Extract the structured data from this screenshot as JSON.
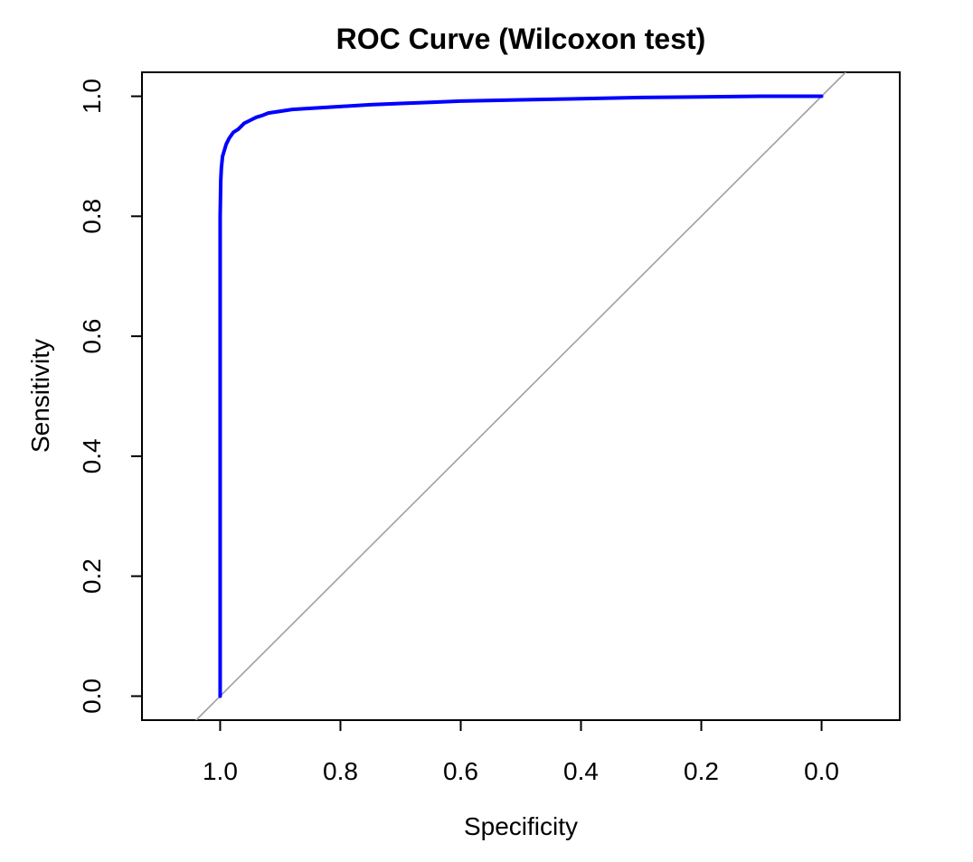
{
  "chart_data": {
    "type": "line",
    "title": "ROC Curve (Wilcoxon test)",
    "xlabel": "Specificity",
    "ylabel": "Sensitivity",
    "x_reversed": true,
    "xlim": [
      1.13,
      -0.13
    ],
    "ylim": [
      -0.04,
      1.04
    ],
    "x_ticks": [
      1.0,
      0.8,
      0.6,
      0.4,
      0.2,
      0.0
    ],
    "x_tick_labels": [
      "1.0",
      "0.8",
      "0.6",
      "0.4",
      "0.2",
      "0.0"
    ],
    "y_ticks": [
      0.0,
      0.2,
      0.4,
      0.6,
      0.8,
      1.0
    ],
    "y_tick_labels": [
      "0.0",
      "0.2",
      "0.4",
      "0.6",
      "0.8",
      "1.0"
    ],
    "grid": false,
    "series": [
      {
        "role": "roc-curve",
        "color": "#0000ff",
        "x": [
          1.0,
          1.0,
          0.999,
          0.998,
          0.996,
          0.993,
          0.99,
          0.985,
          0.978,
          0.97,
          0.96,
          0.95,
          0.94,
          0.93,
          0.92,
          0.9,
          0.88,
          0.85,
          0.8,
          0.75,
          0.7,
          0.65,
          0.6,
          0.5,
          0.4,
          0.3,
          0.2,
          0.1,
          0.0
        ],
        "y": [
          0.0,
          0.8,
          0.86,
          0.88,
          0.9,
          0.91,
          0.92,
          0.93,
          0.94,
          0.945,
          0.955,
          0.96,
          0.965,
          0.968,
          0.972,
          0.975,
          0.978,
          0.98,
          0.983,
          0.986,
          0.988,
          0.99,
          0.992,
          0.994,
          0.996,
          0.998,
          0.999,
          1.0,
          1.0
        ]
      },
      {
        "role": "reference-diagonal",
        "color": "#a0a0a0",
        "x": [
          1.04,
          -0.04
        ],
        "y": [
          -0.04,
          1.04
        ]
      }
    ]
  }
}
